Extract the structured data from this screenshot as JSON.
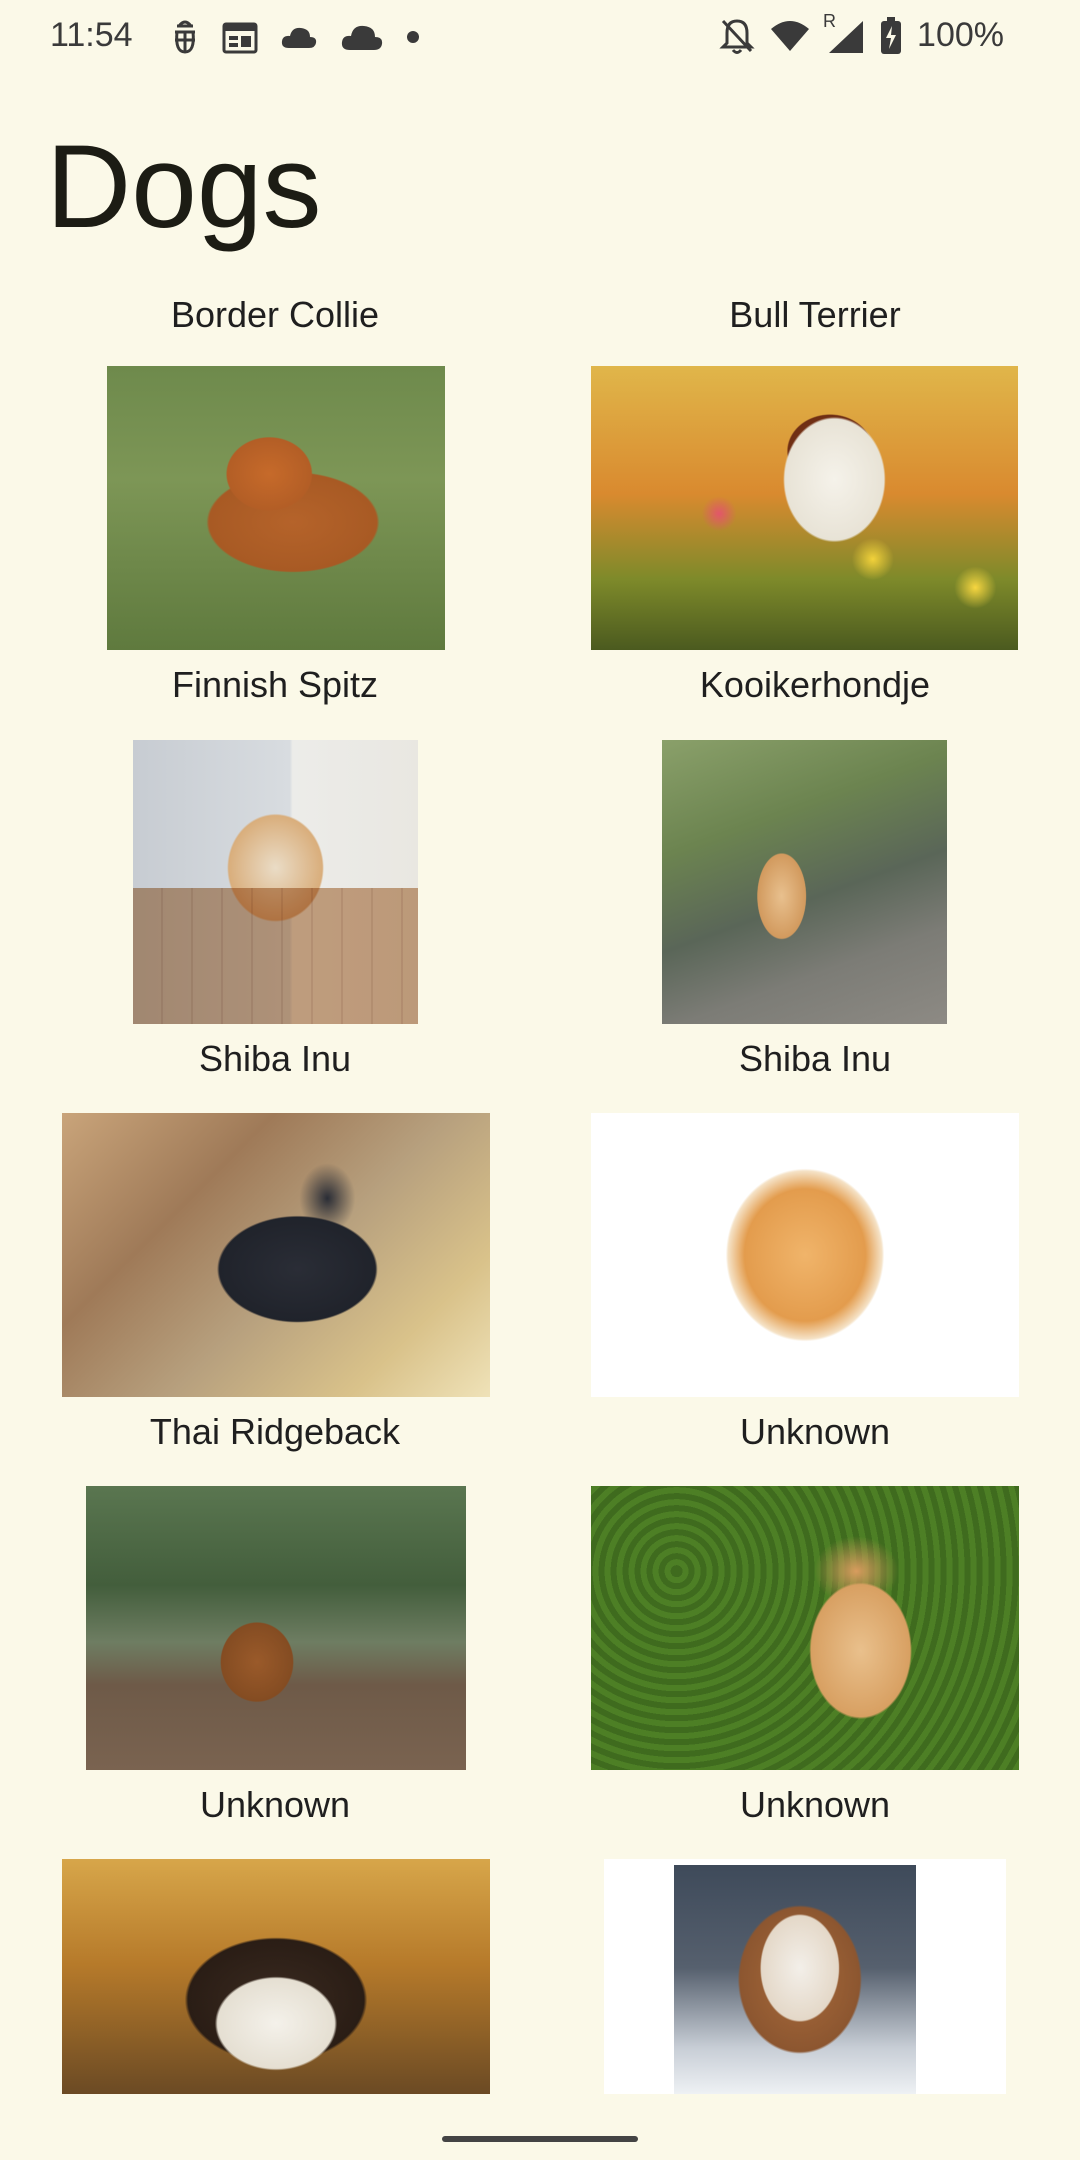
{
  "status_bar": {
    "time": "11:54",
    "left_icons": [
      "android-debug-icon",
      "calendar-icon",
      "cloud-icon",
      "cloud-icon",
      "dot-icon"
    ],
    "right_icons": [
      "notifications-off-icon",
      "wifi-icon",
      "signal-icon",
      "battery-charging-icon"
    ],
    "roaming_label": "R",
    "battery_percent": "100%"
  },
  "header": {
    "title": "Dogs"
  },
  "dogs": [
    {
      "label": "Border Collie"
    },
    {
      "label": "Bull Terrier"
    },
    {
      "label": "Finnish Spitz"
    },
    {
      "label": "Kooikerhondje"
    },
    {
      "label": "Shiba Inu"
    },
    {
      "label": "Shiba Inu"
    },
    {
      "label": "Thai Ridgeback"
    },
    {
      "label": "Unknown"
    },
    {
      "label": "Unknown"
    },
    {
      "label": "Unknown"
    }
  ]
}
